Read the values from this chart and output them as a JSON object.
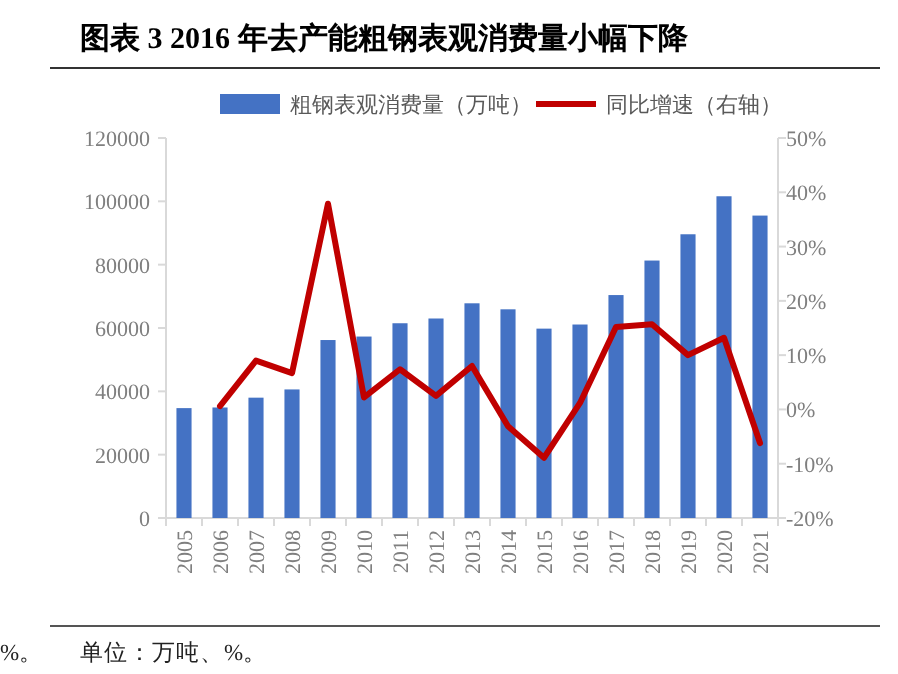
{
  "chart_data": {
    "type": "bar",
    "title": "图表 3 2016 年去产能粗钢表观消费量小幅下降",
    "categories": [
      "2005",
      "2006",
      "2007",
      "2008",
      "2009",
      "2010",
      "2011",
      "2012",
      "2013",
      "2014",
      "2015",
      "2016",
      "2017",
      "2018",
      "2019",
      "2020",
      "2021"
    ],
    "series": [
      {
        "name": "粗钢表观消费量（万吨）",
        "color": "#4472c4",
        "values": [
          34700,
          34900,
          38000,
          40600,
          56200,
          57300,
          61500,
          63000,
          67800,
          65900,
          59800,
          61100,
          70400,
          81300,
          89600,
          101600,
          95500
        ]
      },
      {
        "name": "同比增速（右轴）",
        "color": "#c00000",
        "type": "line",
        "axis": "y2",
        "values": [
          null,
          0.6,
          9.0,
          6.7,
          37.9,
          2.2,
          7.4,
          2.5,
          8.0,
          -3.1,
          -8.9,
          1.2,
          15.2,
          15.7,
          10.0,
          13.2,
          -6.2
        ]
      }
    ],
    "ylim": [
      0,
      120000
    ],
    "yticks": [
      0,
      20000,
      40000,
      60000,
      80000,
      100000,
      120000
    ],
    "y2lim": [
      -20,
      50
    ],
    "y2ticks": [
      {
        "value": -20,
        "label": "-20%"
      },
      {
        "value": -10,
        "label": "-10%"
      },
      {
        "value": 0,
        "label": "0%"
      },
      {
        "value": 10,
        "label": "10%"
      },
      {
        "value": 20,
        "label": "20%"
      },
      {
        "value": 30,
        "label": "30%"
      },
      {
        "value": 40,
        "label": "40%"
      },
      {
        "value": 50,
        "label": "50%"
      }
    ],
    "grid": false,
    "legend": "top",
    "annotations": [
      "%。",
      "单位：万吨、%。"
    ]
  }
}
